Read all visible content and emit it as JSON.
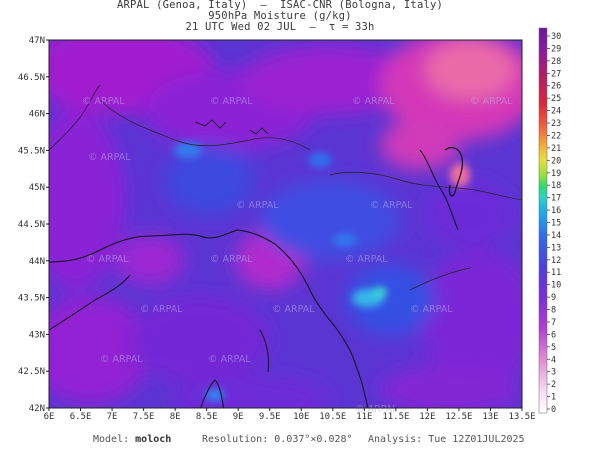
{
  "header": {
    "line1": "ARPAL (Genoa, Italy)  —  ISAC-CNR (Bologna, Italy)",
    "line2": "950hPa Moisture (g/kg)",
    "line3": "21 UTC Wed 02 JUL  —  τ = 33h"
  },
  "map": {
    "lat_labels": [
      "47N",
      "46.5N",
      "46N",
      "45.5N",
      "45N",
      "44.5N",
      "44N",
      "43.5N",
      "43N",
      "42.5N",
      "42N"
    ],
    "lon_labels": [
      "6E",
      "6.5E",
      "7E",
      "7.5E",
      "8E",
      "8.5E",
      "9E",
      "9.5E",
      "10E",
      "10.5E",
      "11E",
      "11.5E",
      "12E",
      "12.5E",
      "13E",
      "13.5E"
    ],
    "lat_range": [
      42,
      47
    ],
    "lon_range": [
      6,
      13.5
    ],
    "watermark": "© ARPAL",
    "dominant_colors": [
      "#5a2fd6",
      "#8a1fd8",
      "#3d4ee0",
      "#c01ad0",
      "#e24bb0"
    ]
  },
  "colorbar": {
    "ticks": [
      "30",
      "29",
      "28",
      "27",
      "26",
      "25",
      "24",
      "23",
      "22",
      "21",
      "20",
      "19",
      "18",
      "17",
      "16",
      "15",
      "14",
      "13",
      "12",
      "11",
      "10",
      "9",
      "8",
      "7",
      "6",
      "5",
      "4",
      "3",
      "2",
      "1",
      "0"
    ],
    "unit": "g/kg"
  },
  "footer": {
    "model_label": "Model:",
    "model_value": "moloch",
    "resolution_label": "Resolution:",
    "resolution_value": "0.037°×0.028°",
    "analysis_label": "Analysis:",
    "analysis_value": "Tue 12Z01JUL2025"
  }
}
